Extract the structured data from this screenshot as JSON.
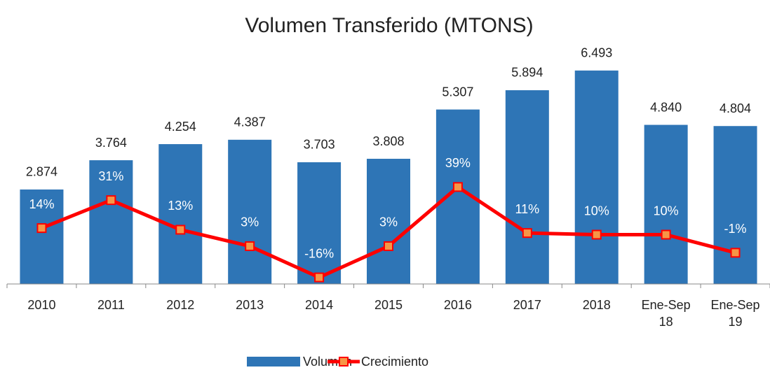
{
  "chart_data": {
    "type": "bar",
    "title": "Volumen Transferido (MTONS)",
    "categories": [
      "2010",
      "2011",
      "2012",
      "2013",
      "2014",
      "2015",
      "2016",
      "2017",
      "2018",
      "Ene-Sep 18",
      "Ene-Sep 19"
    ],
    "series": [
      {
        "name": "Volumen",
        "type": "bar",
        "color": "#2e75b6",
        "values": [
          2.874,
          3.764,
          4.254,
          4.387,
          3.703,
          3.808,
          5.307,
          5.894,
          6.493,
          4.84,
          4.804
        ],
        "value_labels": [
          "2.874",
          "3.764",
          "4.254",
          "4.387",
          "3.703",
          "3.808",
          "5.307",
          "5.894",
          "6.493",
          "4.840",
          "4.804"
        ]
      },
      {
        "name": "Crecimiento",
        "type": "line",
        "axis": "y2",
        "color": "#ff0000",
        "marker_color": "#f79646",
        "values": [
          14,
          31,
          13,
          3,
          -16,
          3,
          39,
          11,
          10,
          10,
          -1
        ],
        "value_labels": [
          "14%",
          "31%",
          "13%",
          "3%",
          "-16%",
          "3%",
          "39%",
          "11%",
          "10%",
          "10%",
          "-1%"
        ]
      }
    ],
    "ylim": [
      0,
      7
    ],
    "y2lim": [
      -20,
      120
    ],
    "legend": "bottom"
  }
}
